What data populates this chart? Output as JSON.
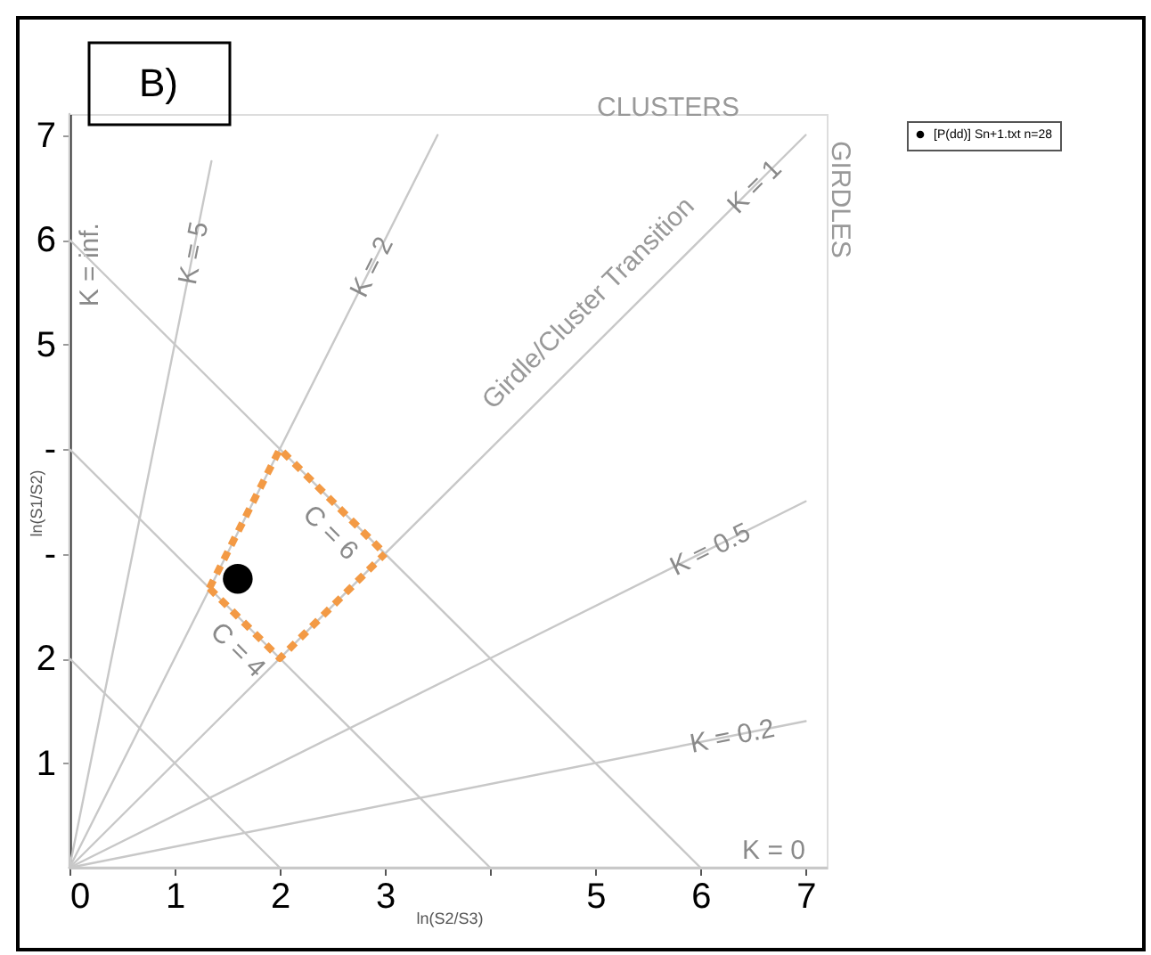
{
  "chart_data": {
    "type": "scatter",
    "xlabel": "ln(S2/S3)",
    "ylabel": "ln(S1/S2)",
    "xlim": [
      0,
      7.2
    ],
    "ylim": [
      0,
      7.2
    ],
    "xticks": [
      0,
      1,
      2,
      3,
      {
        "value": 4,
        "label": null
      },
      5,
      6,
      7
    ],
    "yticks": [
      1,
      2,
      {
        "value": 3,
        "label": "-"
      },
      {
        "value": 4,
        "label": "-"
      },
      5,
      6,
      7
    ],
    "grid": false,
    "legend": "top right",
    "line_style": "solid",
    "annotations": [
      "B)",
      "CLUSTERS",
      "GIRDLES",
      "Girdle/Cluster Transition"
    ],
    "series": [
      {
        "type": "line",
        "name": "K = inf.",
        "color": "#c8c8c8",
        "x": [
          0,
          0
        ],
        "values": [
          0,
          7.2
        ]
      },
      {
        "type": "line",
        "name": "K = 5",
        "color": "#c8c8c8",
        "x": [
          0,
          1.35
        ],
        "values": [
          0,
          6.75
        ]
      },
      {
        "type": "line",
        "name": "K = 2",
        "color": "#c8c8c8",
        "x": [
          0,
          3.5
        ],
        "values": [
          0,
          7
        ]
      },
      {
        "type": "line",
        "name": "K = 1",
        "color": "#c8c8c8",
        "x": [
          0,
          7
        ],
        "values": [
          0,
          7
        ]
      },
      {
        "type": "line",
        "name": "K = 0.5",
        "color": "#c8c8c8",
        "x": [
          0,
          7
        ],
        "values": [
          0,
          3.5
        ]
      },
      {
        "type": "line",
        "name": "K = 0.2",
        "color": "#c8c8c8",
        "x": [
          0,
          7
        ],
        "values": [
          0,
          1.4
        ]
      },
      {
        "type": "line",
        "name": "K = 0",
        "color": "#c8c8c8",
        "x": [
          0,
          7.2
        ],
        "values": [
          0,
          0
        ]
      },
      {
        "type": "line",
        "color": "#c8c8c8",
        "x": [
          0,
          2
        ],
        "values": [
          2,
          0
        ]
      },
      {
        "type": "line",
        "name": "C = 4",
        "color": "#c8c8c8",
        "x": [
          0,
          4
        ],
        "values": [
          4,
          0
        ]
      },
      {
        "type": "line",
        "name": "C = 6",
        "color": "#c8c8c8",
        "x": [
          0,
          6
        ],
        "values": [
          6,
          0
        ]
      },
      {
        "type": "line",
        "color": "#f39a45",
        "line_style": "dotted",
        "x": [
          1.33,
          2,
          3
        ],
        "values": [
          2.67,
          4,
          3
        ]
      },
      {
        "type": "line",
        "color": "#f39a45",
        "line_style": "dotted",
        "x": [
          1.33,
          2,
          3
        ],
        "values": [
          2.67,
          2,
          3
        ]
      },
      {
        "name": "[P(dd)] Sn+1.txt n=28",
        "color": "#000000",
        "marker": "circle",
        "x": [
          1.6
        ],
        "values": [
          2.76
        ]
      }
    ]
  }
}
